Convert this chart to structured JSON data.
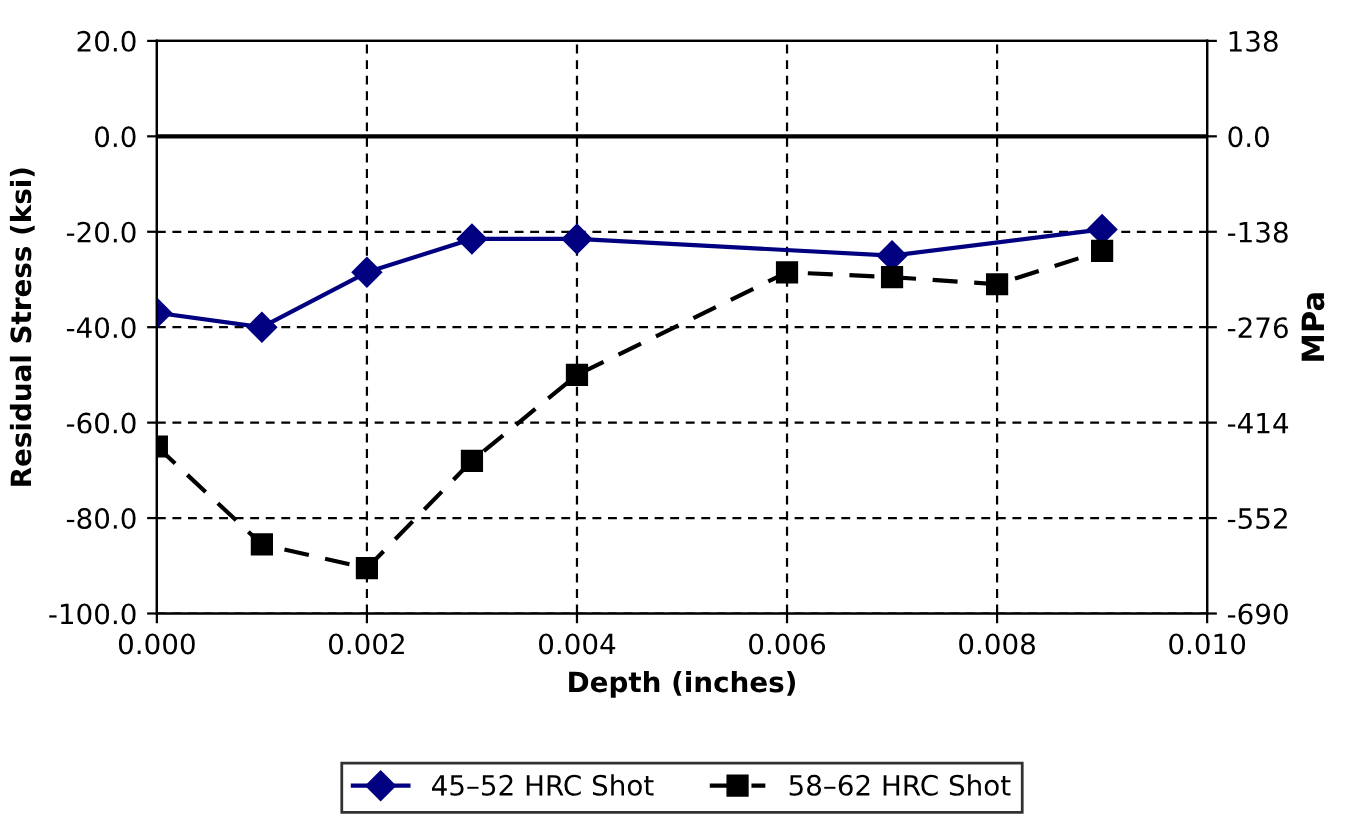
{
  "chart_data": {
    "type": "line",
    "xlabel": "Depth (inches)",
    "ylabel": "Residual Stress (ksi)",
    "y2label": "MPa",
    "xlim": [
      0,
      0.01
    ],
    "xticks": [
      {
        "value": 0,
        "label": "0.000"
      },
      {
        "value": 0.002,
        "label": "0.002"
      },
      {
        "value": 0.004,
        "label": "0.004"
      },
      {
        "value": 0.006,
        "label": "0.006"
      },
      {
        "value": 0.008,
        "label": "0.008"
      },
      {
        "value": 0.01,
        "label": "0.010"
      }
    ],
    "ylim": [
      -100,
      20
    ],
    "yticks": [
      {
        "value": -100,
        "label": "-100.0"
      },
      {
        "value": -80,
        "label": "-80.0"
      },
      {
        "value": -60,
        "label": "-60.0"
      },
      {
        "value": -40,
        "label": "-40.0"
      },
      {
        "value": -20,
        "label": "-20.0"
      },
      {
        "value": 0,
        "label": "0.0"
      },
      {
        "value": 20,
        "label": "20.0"
      }
    ],
    "y2lim": [
      -690,
      138
    ],
    "y2ticks": [
      -690,
      -552,
      -414,
      -276,
      -138,
      {
        "value": 0,
        "label": "0.0"
      },
      138
    ],
    "grid": true,
    "legend": "bottom",
    "ref_lines": [
      {
        "axis": "y",
        "value": 0,
        "color": "#000000",
        "line_style": "solid"
      }
    ],
    "series": [
      {
        "name": "45–52 HRC Shot",
        "color": "#000080",
        "marker": "diamond",
        "line_style": "solid",
        "x": [
          0,
          0.001,
          0.002,
          0.003,
          0.004,
          0.007,
          0.009
        ],
        "values": [
          -37,
          -40,
          -28.5,
          -21.5,
          -21.5,
          -25,
          -19.5
        ]
      },
      {
        "name": "58–62 HRC Shot",
        "color": "#000000",
        "marker": "square",
        "line_style": "dashed",
        "x": [
          0,
          0.001,
          0.002,
          0.003,
          0.004,
          0.006,
          0.007,
          0.008,
          0.009
        ],
        "values": [
          -65,
          -85.5,
          -90.5,
          -68,
          -50,
          -28.5,
          -29.5,
          -31,
          -24
        ]
      }
    ]
  }
}
